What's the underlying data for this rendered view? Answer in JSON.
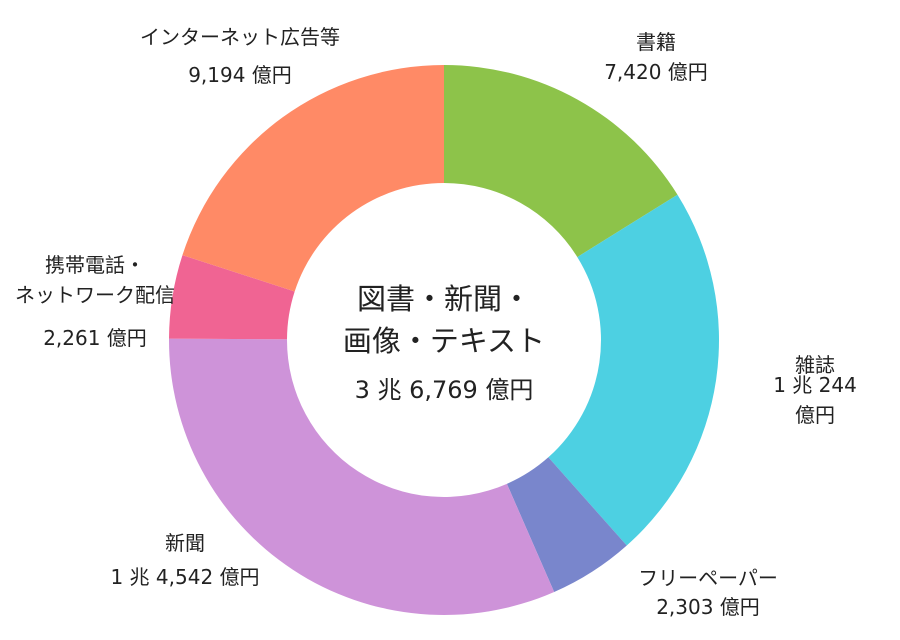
{
  "chart_data": {
    "type": "donut",
    "categories": [
      "書籍",
      "雑誌",
      "フリーペーパー",
      "新聞",
      "携帯電話・\nネットワーク配信",
      "インターネット広告等"
    ],
    "values": [
      7420,
      10244,
      2303,
      14542,
      2261,
      9194
    ],
    "value_labels": [
      "7,420 億円",
      "1 兆 244 億円",
      "2,303 億円",
      "1 兆 4,542 億円",
      "2,261 億円",
      "9,194 億円"
    ],
    "colors": [
      "#8dc34a",
      "#4dd0e2",
      "#7986cc",
      "#ce93d9",
      "#f06493",
      "#ff8a66"
    ],
    "center_title": "図書・新聞・\n画像・テキスト",
    "center_value": {
      "value": 36769,
      "label": "3 兆 6,769 億円"
    }
  }
}
